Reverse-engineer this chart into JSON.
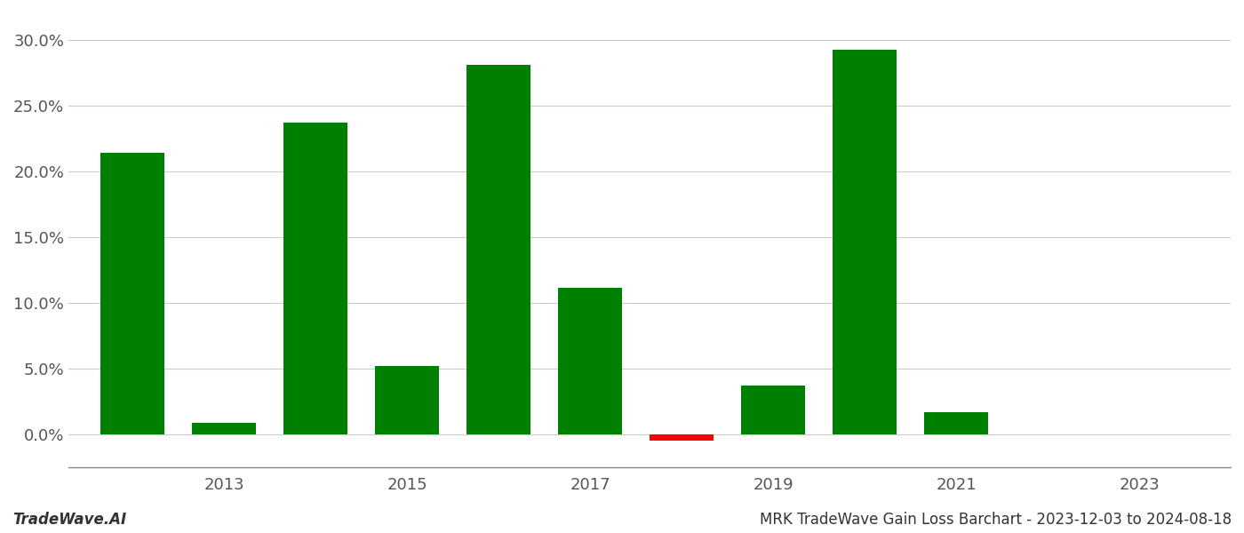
{
  "years": [
    2012,
    2013,
    2014,
    2015,
    2016,
    2017,
    2018,
    2019,
    2020,
    2021,
    2022
  ],
  "values": [
    0.214,
    0.009,
    0.237,
    0.052,
    0.281,
    0.111,
    -0.005,
    0.037,
    0.292,
    0.017,
    0.0
  ],
  "colors": [
    "#008000",
    "#008000",
    "#008000",
    "#008000",
    "#008000",
    "#008000",
    "#ff0000",
    "#008000",
    "#008000",
    "#008000",
    "#008000"
  ],
  "bar_width": 0.7,
  "ylim": [
    -0.025,
    0.32
  ],
  "yticks": [
    0.0,
    0.05,
    0.1,
    0.15,
    0.2,
    0.25,
    0.3
  ],
  "xtick_labels": [
    "2013",
    "2015",
    "2017",
    "2019",
    "2021",
    "2023"
  ],
  "xtick_positions": [
    2013,
    2015,
    2017,
    2019,
    2021,
    2023
  ],
  "xlim_left": 2011.3,
  "xlim_right": 2024.0,
  "xlabel": "",
  "ylabel": "",
  "footer_left": "TradeWave.AI",
  "footer_right": "MRK TradeWave Gain Loss Barchart - 2023-12-03 to 2024-08-18",
  "background_color": "#ffffff",
  "grid_color": "#cccccc",
  "tick_fontsize": 13
}
